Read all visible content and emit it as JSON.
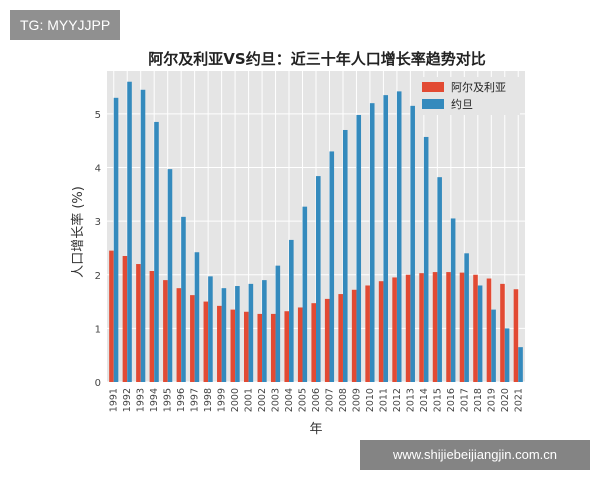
{
  "watermark_top": "TG: MYYJJPP",
  "watermark_bottom": "www.shijiebeijiangjin.com.cn",
  "colors": {
    "series_a": "#e24a33",
    "series_b": "#348abd",
    "plot_bg": "#e5e5e5",
    "grid": "#ffffff"
  },
  "chart_data": {
    "type": "bar",
    "title": "阿尔及利亚VS约旦：近三十年人口增长率趋势对比",
    "xlabel": "年",
    "ylabel": "人口增长率 (%)",
    "ylim": [
      0,
      5.8
    ],
    "yticks": [
      "0",
      "1",
      "2",
      "3",
      "4",
      "5"
    ],
    "grid": true,
    "legend_position": "top-right",
    "categories": [
      "1991",
      "1992",
      "1993",
      "1994",
      "1995",
      "1996",
      "1997",
      "1998",
      "1999",
      "2000",
      "2001",
      "2002",
      "2003",
      "2004",
      "2005",
      "2006",
      "2007",
      "2008",
      "2009",
      "2010",
      "2011",
      "2012",
      "2013",
      "2014",
      "2015",
      "2016",
      "2017",
      "2018",
      "2019",
      "2020",
      "2021"
    ],
    "series": [
      {
        "name": "阿尔及利亚",
        "values": [
          2.45,
          2.35,
          2.2,
          2.07,
          1.9,
          1.75,
          1.62,
          1.5,
          1.42,
          1.35,
          1.31,
          1.27,
          1.27,
          1.32,
          1.39,
          1.47,
          1.55,
          1.64,
          1.72,
          1.8,
          1.88,
          1.95,
          2.0,
          2.03,
          2.05,
          2.05,
          2.04,
          2.0,
          1.93,
          1.83,
          1.73
        ]
      },
      {
        "name": "约旦",
        "values": [
          5.3,
          5.6,
          5.45,
          4.85,
          3.97,
          3.08,
          2.42,
          1.97,
          1.75,
          1.79,
          1.83,
          1.9,
          2.17,
          2.65,
          3.27,
          3.84,
          4.3,
          4.7,
          4.98,
          5.2,
          5.35,
          5.42,
          5.15,
          4.57,
          3.82,
          3.05,
          2.4,
          1.8,
          1.35,
          1.0,
          0.65
        ]
      }
    ]
  }
}
